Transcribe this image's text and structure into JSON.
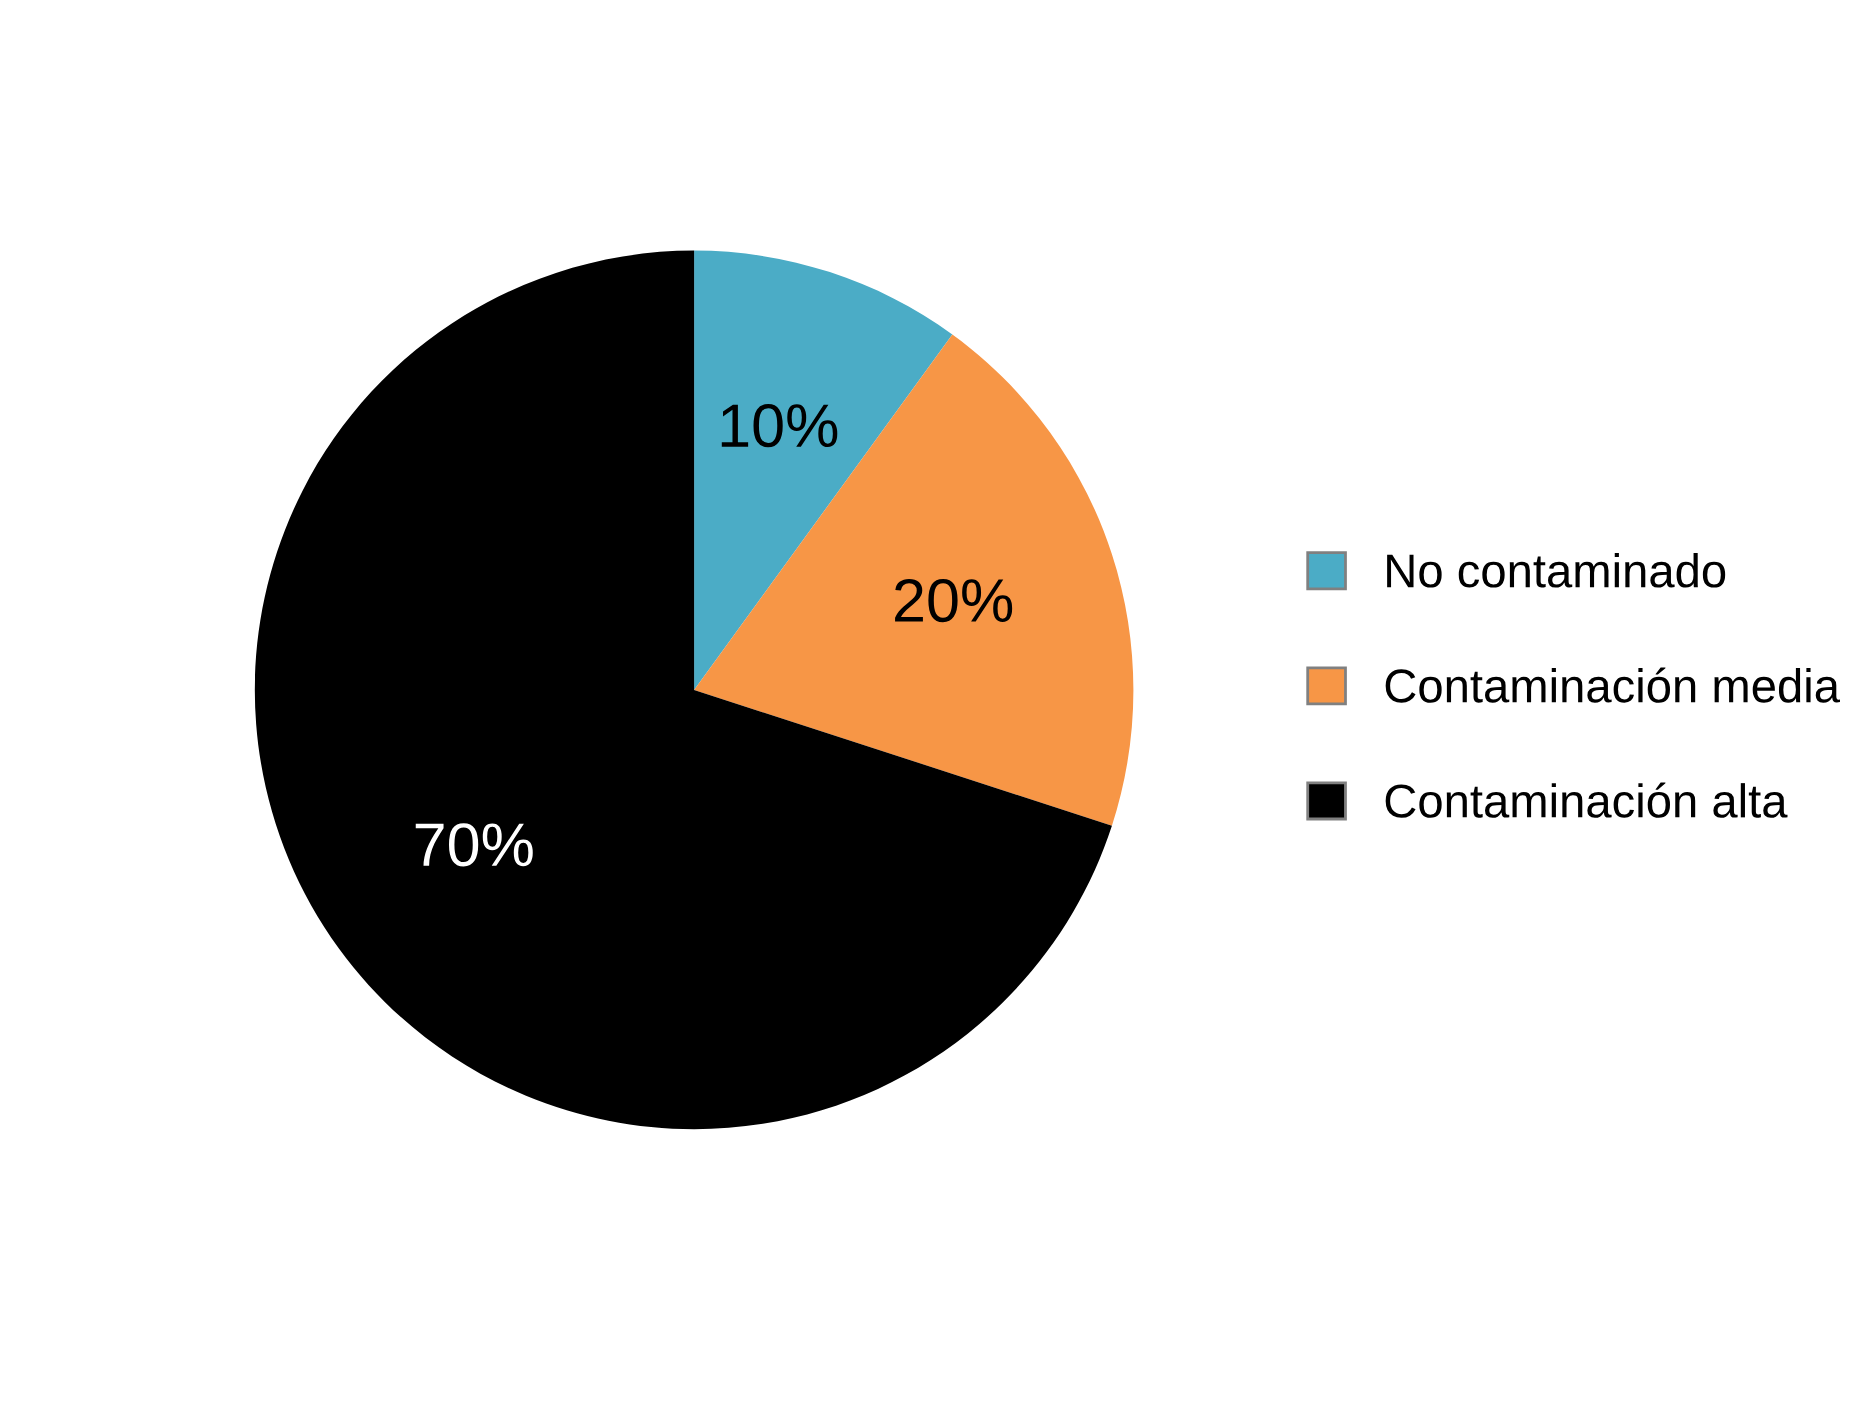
{
  "chart_data": {
    "type": "pie",
    "categories": [
      "No contaminado",
      "Contaminación media",
      "Contaminación alta"
    ],
    "values": [
      10,
      20,
      70
    ],
    "colors": [
      "#4bacc6",
      "#f79646",
      "#000000"
    ],
    "value_labels": [
      "10%",
      "20%",
      "70%"
    ],
    "legend": "right"
  }
}
